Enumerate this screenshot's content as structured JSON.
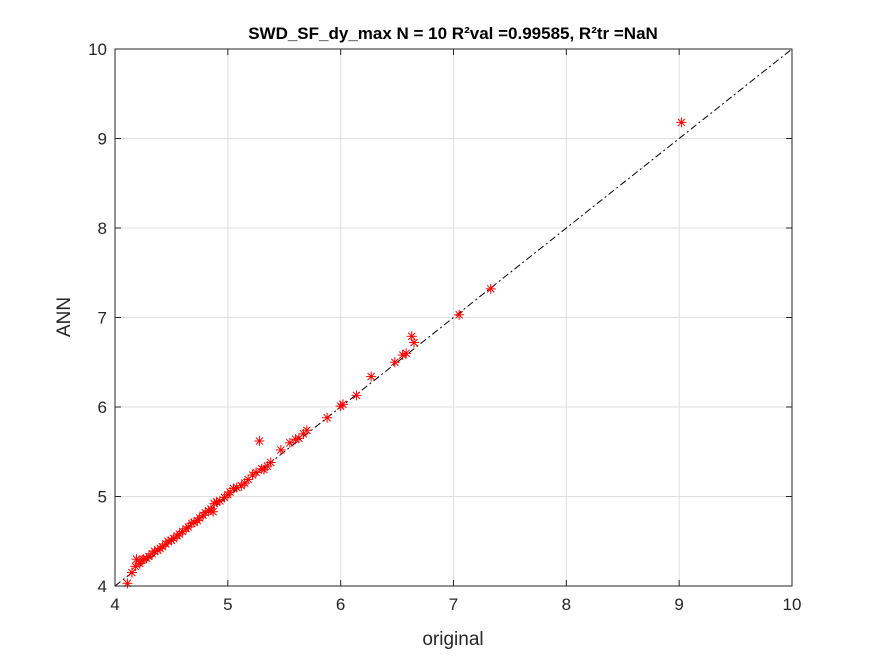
{
  "chart_data": {
    "type": "scatter",
    "title": "SWD_SF_dy_max  N = 10 R²val =0.99585, R²tr =NaN",
    "xlabel": "original",
    "ylabel": "ANN",
    "xlim": [
      4,
      10
    ],
    "ylim": [
      4,
      10
    ],
    "xticks": [
      "4",
      "5",
      "6",
      "7",
      "8",
      "9",
      "10"
    ],
    "yticks": [
      "4",
      "5",
      "6",
      "7",
      "8",
      "9",
      "10"
    ],
    "grid": true,
    "reference_line": {
      "style": "dash-dot",
      "color": "#000000",
      "from": [
        4,
        4
      ],
      "to": [
        10,
        10
      ]
    },
    "marker": {
      "symbol": "asterisk",
      "color": "#ff0000"
    },
    "points": [
      [
        4.11,
        4.03
      ],
      [
        4.15,
        4.15
      ],
      [
        4.18,
        4.22
      ],
      [
        4.19,
        4.3
      ],
      [
        4.22,
        4.25
      ],
      [
        4.24,
        4.29
      ],
      [
        4.25,
        4.3
      ],
      [
        4.28,
        4.31
      ],
      [
        4.3,
        4.33
      ],
      [
        4.33,
        4.36
      ],
      [
        4.35,
        4.39
      ],
      [
        4.38,
        4.4
      ],
      [
        4.4,
        4.42
      ],
      [
        4.42,
        4.44
      ],
      [
        4.45,
        4.47
      ],
      [
        4.47,
        4.5
      ],
      [
        4.5,
        4.51
      ],
      [
        4.52,
        4.53
      ],
      [
        4.55,
        4.56
      ],
      [
        4.57,
        4.58
      ],
      [
        4.6,
        4.61
      ],
      [
        4.63,
        4.64
      ],
      [
        4.65,
        4.66
      ],
      [
        4.68,
        4.7
      ],
      [
        4.7,
        4.71
      ],
      [
        4.73,
        4.73
      ],
      [
        4.75,
        4.76
      ],
      [
        4.78,
        4.79
      ],
      [
        4.8,
        4.82
      ],
      [
        4.83,
        4.84
      ],
      [
        4.85,
        4.86
      ],
      [
        4.87,
        4.83
      ],
      [
        4.88,
        4.92
      ],
      [
        4.9,
        4.94
      ],
      [
        4.93,
        4.95
      ],
      [
        4.97,
        4.99
      ],
      [
        5.0,
        5.02
      ],
      [
        5.02,
        5.05
      ],
      [
        5.05,
        5.09
      ],
      [
        5.08,
        5.1
      ],
      [
        5.12,
        5.12
      ],
      [
        5.15,
        5.15
      ],
      [
        5.18,
        5.19
      ],
      [
        5.22,
        5.24
      ],
      [
        5.25,
        5.27
      ],
      [
        5.28,
        5.62
      ],
      [
        5.3,
        5.31
      ],
      [
        5.32,
        5.3
      ],
      [
        5.35,
        5.34
      ],
      [
        5.38,
        5.38
      ],
      [
        5.47,
        5.52
      ],
      [
        5.55,
        5.6
      ],
      [
        5.6,
        5.64
      ],
      [
        5.63,
        5.65
      ],
      [
        5.67,
        5.7
      ],
      [
        5.7,
        5.74
      ],
      [
        5.88,
        5.88
      ],
      [
        6.0,
        6.01
      ],
      [
        6.02,
        6.03
      ],
      [
        6.14,
        6.13
      ],
      [
        6.27,
        6.34
      ],
      [
        6.48,
        6.5
      ],
      [
        6.55,
        6.58
      ],
      [
        6.58,
        6.6
      ],
      [
        6.63,
        6.79
      ],
      [
        6.65,
        6.72
      ],
      [
        7.05,
        7.03
      ],
      [
        7.33,
        7.32
      ],
      [
        9.02,
        9.18
      ]
    ]
  }
}
